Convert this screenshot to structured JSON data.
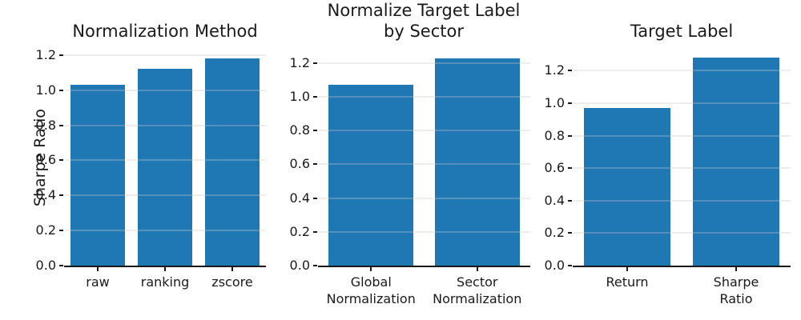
{
  "figure": {
    "ylabel": "Sharpe Ratio",
    "bar_color": "#1f77b4",
    "grid_color": "#ebebeb",
    "axis_color": "#1a1a1a",
    "background_color": "#ffffff",
    "ytick_labels": [
      "0.0",
      "0.2",
      "0.4",
      "0.6",
      "0.8",
      "1.0",
      "1.2"
    ]
  },
  "chart_data": [
    {
      "type": "bar",
      "title": "Normalization Method",
      "categories": [
        "raw",
        "ranking",
        "zscore"
      ],
      "values": [
        1.03,
        1.12,
        1.18
      ],
      "xlabel": "",
      "ylabel": "Sharpe Ratio",
      "ylim": [
        0,
        1.24
      ],
      "yticks": [
        0,
        0.2,
        0.4,
        0.6,
        0.8,
        1.0,
        1.2
      ],
      "grid": true,
      "legend": false
    },
    {
      "type": "bar",
      "title": "Normalize Target Label\nby Sector",
      "categories": [
        "Global\nNormalization",
        "Sector\nNormalization"
      ],
      "values": [
        1.07,
        1.23
      ],
      "xlabel": "",
      "ylabel": "",
      "ylim": [
        0,
        1.29
      ],
      "yticks": [
        0,
        0.2,
        0.4,
        0.6,
        0.8,
        1.0,
        1.2
      ],
      "grid": true,
      "legend": false
    },
    {
      "type": "bar",
      "title": "Target Label",
      "categories": [
        "Return",
        "Sharpe Ratio"
      ],
      "values": [
        0.97,
        1.28
      ],
      "xlabel": "",
      "ylabel": "",
      "ylim": [
        0,
        1.34
      ],
      "yticks": [
        0,
        0.2,
        0.4,
        0.6,
        0.8,
        1.0,
        1.2
      ],
      "grid": true,
      "legend": false
    }
  ]
}
